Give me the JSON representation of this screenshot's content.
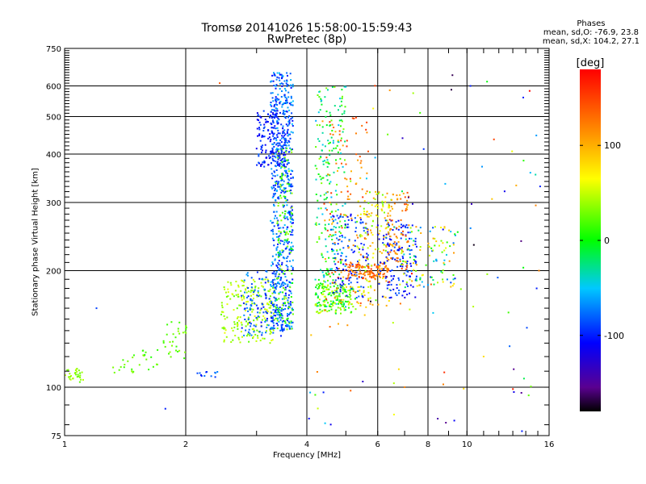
{
  "chart_data": {
    "type": "scatter",
    "title": "Tromsø 20141026 15:58:00-15:59:43",
    "subtitle": "RwPretec (8p)",
    "xlabel": "Frequency [MHz]",
    "ylabel": "Stationary phase Virtual Height [km]",
    "x_scale": "log",
    "y_scale": "log",
    "xlim": [
      1,
      16
    ],
    "ylim": [
      75,
      750
    ],
    "x_ticks": [
      "1",
      "2",
      "4",
      "6",
      "8",
      "10",
      "16"
    ],
    "y_ticks": [
      "75",
      "100",
      "200",
      "300",
      "400",
      "500",
      "600",
      "750"
    ],
    "grid": true,
    "stats": {
      "header": "Phases",
      "line1": "mean, sd,O: -76.9, 23.8",
      "line2": "mean, sd,X: 104.2, 27.1"
    },
    "colorbar": {
      "label": "[deg]",
      "range": [
        -180,
        180
      ],
      "ticks": [
        "100",
        "0",
        "-100"
      ],
      "colormap": [
        "#000000",
        "#5a0090",
        "#0000ff",
        "#00c8ff",
        "#00ff00",
        "#ffff00",
        "#ff8c00",
        "#ff0000"
      ]
    },
    "clusters": [
      {
        "f": [
          1.0,
          1.12
        ],
        "h": [
          103,
          112
        ],
        "phase": [
          20,
          50
        ],
        "n": 30
      },
      {
        "f": [
          1.32,
          1.5
        ],
        "h": [
          108,
          122
        ],
        "phase": [
          10,
          40
        ],
        "n": 14
      },
      {
        "f": [
          1.5,
          1.72
        ],
        "h": [
          108,
          125
        ],
        "phase": [
          5,
          35
        ],
        "n": 14
      },
      {
        "f": [
          1.75,
          2.05
        ],
        "h": [
          118,
          148
        ],
        "phase": [
          10,
          40
        ],
        "n": 30
      },
      {
        "f": [
          2.1,
          2.4
        ],
        "h": [
          106,
          110
        ],
        "phase": [
          -100,
          -70
        ],
        "n": 12
      },
      {
        "f": [
          2.45,
          3.4
        ],
        "h": [
          130,
          190
        ],
        "phase": [
          20,
          60
        ],
        "n": 220
      },
      {
        "f": [
          2.75,
          3.5
        ],
        "h": [
          135,
          200
        ],
        "phase": [
          -110,
          -60
        ],
        "n": 140
      },
      {
        "f": [
          3.0,
          3.55
        ],
        "h": [
          370,
          520
        ],
        "phase": [
          -120,
          -80
        ],
        "n": 170
      },
      {
        "f": [
          3.25,
          3.7
        ],
        "h": [
          140,
          650
        ],
        "phase": [
          -110,
          -50
        ],
        "n": 620
      },
      {
        "f": [
          3.35,
          3.7
        ],
        "h": [
          140,
          420
        ],
        "phase": [
          0,
          40
        ],
        "n": 120
      },
      {
        "f": [
          4.2,
          5.0
        ],
        "h": [
          160,
          600
        ],
        "phase": [
          -60,
          40
        ],
        "n": 260
      },
      {
        "f": [
          4.2,
          5.3
        ],
        "h": [
          155,
          185
        ],
        "phase": [
          -20,
          60
        ],
        "n": 160
      },
      {
        "f": [
          4.4,
          5.7
        ],
        "h": [
          140,
          500
        ],
        "phase": [
          80,
          160
        ],
        "n": 120
      },
      {
        "f": [
          4.6,
          5.7
        ],
        "h": [
          170,
          280
        ],
        "phase": [
          -120,
          -70
        ],
        "n": 120
      },
      {
        "f": [
          5.0,
          6.4
        ],
        "h": [
          190,
          210
        ],
        "phase": [
          110,
          160
        ],
        "n": 120
      },
      {
        "f": [
          5.3,
          6.5
        ],
        "h": [
          160,
          320
        ],
        "phase": [
          20,
          110
        ],
        "n": 140
      },
      {
        "f": [
          6.0,
          7.5
        ],
        "h": [
          170,
          270
        ],
        "phase": [
          -120,
          -80
        ],
        "n": 140
      },
      {
        "f": [
          6.3,
          7.2
        ],
        "h": [
          200,
          320
        ],
        "phase": [
          90,
          150
        ],
        "n": 90
      },
      {
        "f": [
          6.8,
          9.5
        ],
        "h": [
          180,
          260
        ],
        "phase": [
          -110,
          110
        ],
        "n": 110
      },
      {
        "f": [
          4.0,
          15.0
        ],
        "h": [
          80,
          640
        ],
        "phase": [
          -180,
          180
        ],
        "n": 90
      }
    ],
    "points": [
      {
        "x": 2.43,
        "y": 610,
        "phase": 140
      },
      {
        "x": 1.2,
        "y": 160,
        "phase": -90
      },
      {
        "x": 1.78,
        "y": 88,
        "phase": -100
      },
      {
        "x": 4.4,
        "y": 97,
        "phase": -100
      },
      {
        "x": 4.05,
        "y": 83,
        "phase": -110
      },
      {
        "x": 9.3,
        "y": 82,
        "phase": -110
      },
      {
        "x": 13.7,
        "y": 77,
        "phase": -100
      },
      {
        "x": 15.1,
        "y": 200,
        "phase": 120
      },
      {
        "x": 14.9,
        "y": 180,
        "phase": -100
      },
      {
        "x": 11.0,
        "y": 120,
        "phase": 80
      },
      {
        "x": 13.8,
        "y": 560,
        "phase": -100
      },
      {
        "x": 15.2,
        "y": 330,
        "phase": -100
      },
      {
        "x": 10.2,
        "y": 600,
        "phase": -100
      },
      {
        "x": 7.0,
        "y": 100,
        "phase": 120
      }
    ]
  }
}
